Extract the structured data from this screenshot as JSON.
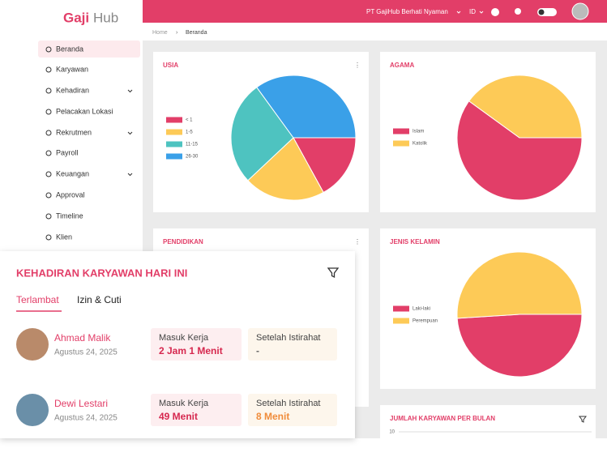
{
  "header": {
    "logo_a": "Gaji",
    "logo_b": "Hub",
    "company": "PT GajiHub Berhati Nyaman",
    "language": "ID"
  },
  "sidebar": {
    "items": [
      "Beranda",
      "Karyawan",
      "Kehadiran",
      "Pelacakan Lokasi",
      "Rekrutmen",
      "Payroll",
      "Keuangan",
      "Approval",
      "Timeline",
      "Klien"
    ]
  },
  "breadcrumb": [
    "Home",
    "Beranda"
  ],
  "cards": [
    {
      "title": "USIA",
      "chart": {
        "type": "pie",
        "categories": [
          "< 1",
          "1-5",
          "11-15",
          "26-30"
        ],
        "values": [
          17,
          21,
          27,
          35
        ],
        "colors": [
          "#e23e68",
          "#fdca57",
          "#4ec3c0",
          "#3aa0e8"
        ]
      }
    },
    {
      "title": "AGAMA",
      "chart": {
        "type": "pie",
        "categories": [
          "Islam",
          "Katolik"
        ],
        "values": [
          60,
          40
        ],
        "colors": [
          "#e23e68",
          "#fdca57"
        ]
      }
    },
    {
      "title": "PENDIDIKAN"
    },
    {
      "title": "JENIS KELAMIN",
      "chart": {
        "type": "pie",
        "categories": [
          "Laki-laki",
          "Perempuan"
        ],
        "values": [
          49,
          51
        ],
        "colors": [
          "#e23e68",
          "#fdca57"
        ]
      }
    },
    {
      "title": "JUMLAH KARYAWAN PER BULAN",
      "chart": {
        "type": "bar",
        "yticks": [
          10
        ]
      }
    }
  ],
  "overlay": {
    "title": "KEHADIRAN KARYAWAN HARI INI",
    "tabs": [
      "Terlambat",
      "Izin & Cuti"
    ],
    "employees": [
      {
        "name": "Ahmad Malik",
        "date": "Agustus 24, 2025",
        "items": [
          {
            "label": "Masuk Kerja",
            "value": "2 Jam 1 Menit"
          },
          {
            "label": "Setelah Istirahat",
            "value": "-"
          }
        ]
      },
      {
        "name": "Dewi Lestari",
        "date": "Agustus 24, 2025",
        "items": [
          {
            "label": "Masuk Kerja",
            "value": "49 Menit"
          },
          {
            "label": "Setelah Istirahat",
            "value": "8 Menit"
          }
        ]
      }
    ]
  }
}
